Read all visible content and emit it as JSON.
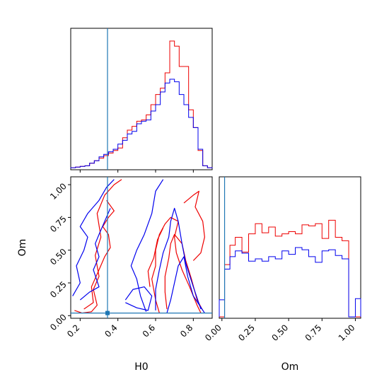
{
  "chart_data": {
    "type": "corner",
    "parameters": [
      "H0",
      "Om"
    ],
    "colors": {
      "red": "#ee0000",
      "blue": "#0000ee",
      "truth": "#1f77b4"
    },
    "truth": {
      "H0": 0.345,
      "Om": 0.02
    },
    "panels": [
      {
        "id": "hist-H0",
        "type": "step-histogram",
        "x": "H0",
        "xlim": [
          0.15,
          0.9
        ],
        "bin_edges": [
          0.15,
          0.175,
          0.2,
          0.225,
          0.25,
          0.275,
          0.3,
          0.325,
          0.35,
          0.375,
          0.4,
          0.425,
          0.45,
          0.475,
          0.5,
          0.525,
          0.55,
          0.575,
          0.6,
          0.625,
          0.65,
          0.675,
          0.7,
          0.725,
          0.75,
          0.775,
          0.8,
          0.825,
          0.85,
          0.875,
          0.9
        ],
        "series": [
          {
            "name": "",
            "color": "red",
            "values": [
              0.005,
              0.01,
              0.015,
              0.02,
              0.04,
              0.06,
              0.08,
              0.1,
              0.12,
              0.14,
              0.16,
              0.24,
              0.3,
              0.33,
              0.37,
              0.38,
              0.42,
              0.5,
              0.58,
              0.63,
              0.75,
              1.0,
              0.96,
              0.8,
              0.8,
              0.46,
              0.32,
              0.14,
              0.02,
              0.005
            ]
          },
          {
            "name": "",
            "color": "blue",
            "values": [
              0.005,
              0.01,
              0.015,
              0.02,
              0.04,
              0.06,
              0.09,
              0.11,
              0.13,
              0.15,
              0.19,
              0.22,
              0.27,
              0.29,
              0.35,
              0.37,
              0.38,
              0.45,
              0.5,
              0.6,
              0.67,
              0.7,
              0.68,
              0.58,
              0.5,
              0.4,
              0.32,
              0.15,
              0.02,
              0.005
            ]
          }
        ]
      },
      {
        "id": "contour-H0-Om",
        "type": "contour",
        "x": "H0",
        "y": "Om",
        "xlim": [
          0.15,
          0.9
        ],
        "ylim": [
          -0.02,
          1.06
        ]
      },
      {
        "id": "hist-Om",
        "type": "step-histogram",
        "x": "Om",
        "xlim": [
          -0.02,
          1.04
        ],
        "bin_edges": [
          -0.02,
          0.02,
          0.06,
          0.1,
          0.15,
          0.2,
          0.25,
          0.3,
          0.35,
          0.4,
          0.45,
          0.5,
          0.55,
          0.6,
          0.65,
          0.7,
          0.75,
          0.8,
          0.85,
          0.9,
          0.95,
          1.0,
          1.04
        ],
        "series": [
          {
            "name": "",
            "color": "red",
            "values": [
              0,
              0.46,
              0.63,
              0.7,
              0.57,
              0.73,
              0.82,
              0.74,
              0.79,
              0.71,
              0.73,
              0.75,
              0.73,
              0.81,
              0.8,
              0.82,
              0.69,
              0.85,
              0.7,
              0.67,
              0,
              0
            ]
          },
          {
            "name": "",
            "color": "blue",
            "values": [
              0.15,
              0.42,
              0.53,
              0.58,
              0.56,
              0.49,
              0.51,
              0.49,
              0.53,
              0.51,
              0.58,
              0.55,
              0.61,
              0.59,
              0.53,
              0.48,
              0.58,
              0.59,
              0.54,
              0.51,
              0,
              0.16
            ]
          }
        ]
      }
    ],
    "axes": {
      "H0": {
        "label": "H0",
        "ticks": [
          0.2,
          0.4,
          0.6,
          0.8
        ],
        "tick_labels": [
          "0.2",
          "0.4",
          "0.6",
          "0.8"
        ]
      },
      "Om": {
        "label": "Om",
        "ticks": [
          0.0,
          0.25,
          0.5,
          0.75,
          1.0
        ],
        "tick_labels": [
          "0.00",
          "0.25",
          "0.50",
          "0.75",
          "1.00"
        ]
      }
    },
    "grid": false,
    "legend": "none"
  }
}
